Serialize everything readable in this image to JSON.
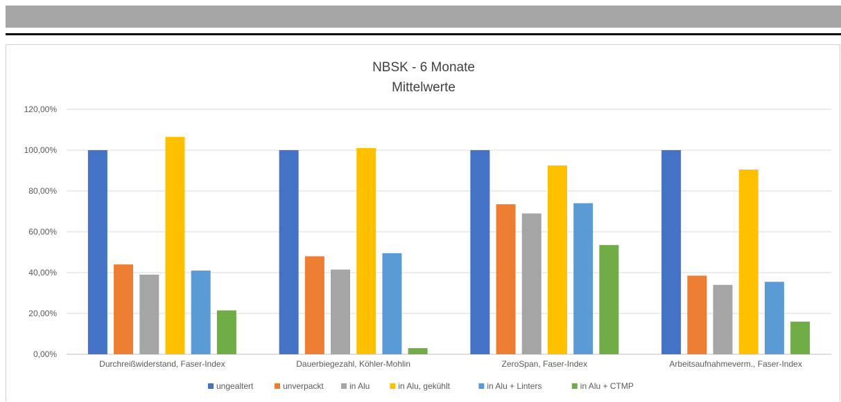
{
  "chart_data": {
    "type": "bar",
    "title": "NBSK - 6 Monate",
    "subtitle": "Mittelwerte",
    "xlabel": "",
    "ylabel": "",
    "ylim": [
      0,
      1.2
    ],
    "y_ticks": [
      "0,00%",
      "20,00%",
      "40,00%",
      "60,00%",
      "80,00%",
      "100,00%",
      "120,00%"
    ],
    "y_tick_values": [
      0,
      0.2,
      0.4,
      0.6,
      0.8,
      1.0,
      1.2
    ],
    "grid": true,
    "legend_position": "bottom",
    "categories": [
      "Durchreißwiderstand, Faser-Index",
      "Dauerbiegezahl, Köhler-Mohlin",
      "ZeroSpan, Faser-Index",
      "Arbeitsaufnahmeverm., Faser-Index"
    ],
    "series": [
      {
        "name": "ungealtert",
        "color": "#4472c4",
        "values": [
          1.0,
          1.0,
          1.0,
          1.0
        ]
      },
      {
        "name": "unverpackt",
        "color": "#ed7d31",
        "values": [
          0.44,
          0.48,
          0.735,
          0.385
        ]
      },
      {
        "name": "in Alu",
        "color": "#a5a5a5",
        "values": [
          0.39,
          0.415,
          0.69,
          0.34
        ]
      },
      {
        "name": "in Alu, gekühlt",
        "color": "#ffc000",
        "values": [
          1.065,
          1.01,
          0.925,
          0.905
        ]
      },
      {
        "name": "in Alu + Linters",
        "color": "#5b9bd5",
        "values": [
          0.41,
          0.495,
          0.74,
          0.355
        ]
      },
      {
        "name": "in Alu + CTMP",
        "color": "#70ad47",
        "values": [
          0.215,
          0.03,
          0.535,
          0.16
        ]
      }
    ]
  }
}
